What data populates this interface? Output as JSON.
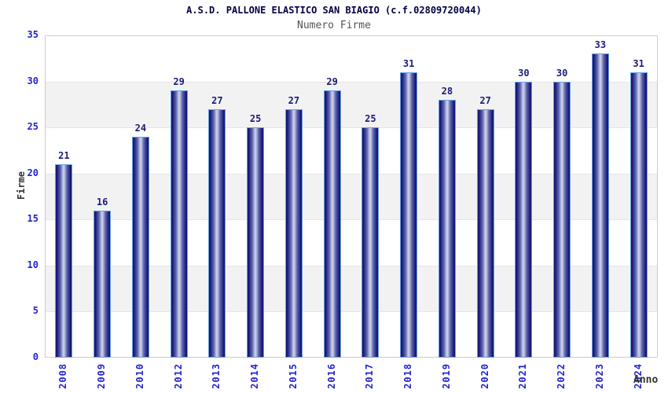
{
  "chart_data": {
    "type": "bar",
    "title": "A.S.D. PALLONE ELASTICO SAN BIAGIO (c.f.02809720044)",
    "subtitle": "Numero Firme",
    "xlabel": "Anno",
    "ylabel": "Firme",
    "categories": [
      "2008",
      "2009",
      "2010",
      "2012",
      "2013",
      "2014",
      "2015",
      "2016",
      "2017",
      "2018",
      "2019",
      "2020",
      "2021",
      "2022",
      "2023",
      "2024"
    ],
    "values": [
      21,
      16,
      24,
      29,
      27,
      25,
      27,
      29,
      25,
      31,
      28,
      27,
      30,
      30,
      33,
      31
    ],
    "ylim": [
      0,
      35
    ],
    "ytick_step": 5,
    "yticks": [
      0,
      5,
      10,
      15,
      20,
      25,
      30,
      35
    ],
    "grid": "alternating-horizontal-bands",
    "legend": "none",
    "colors": {
      "title": "#000044",
      "subtitle": "#555555",
      "axis_tick": "#2424CE",
      "value_label": "#1C1C78",
      "axis_title": "#333333",
      "bar_dark": "#14146E",
      "bar_mid": "#5F66AC",
      "bar_light": "#C7CCE8",
      "bar_border": "#66A3E0",
      "band_gray": "#F2F2F2",
      "plot_border": "#CCCCCC",
      "gridline": "#E6E6E6"
    }
  }
}
